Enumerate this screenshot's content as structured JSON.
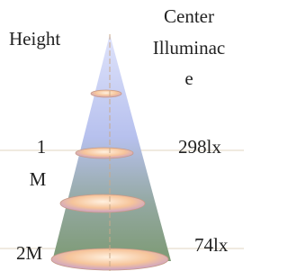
{
  "labels": {
    "height": "Height",
    "illuminance": [
      "Center",
      "Illuminac",
      "e"
    ]
  },
  "rows": [
    {
      "height": [
        "1",
        "M"
      ],
      "illuminance": "298lx"
    },
    {
      "height": [
        "2M"
      ],
      "illuminance": "74lx"
    }
  ]
}
